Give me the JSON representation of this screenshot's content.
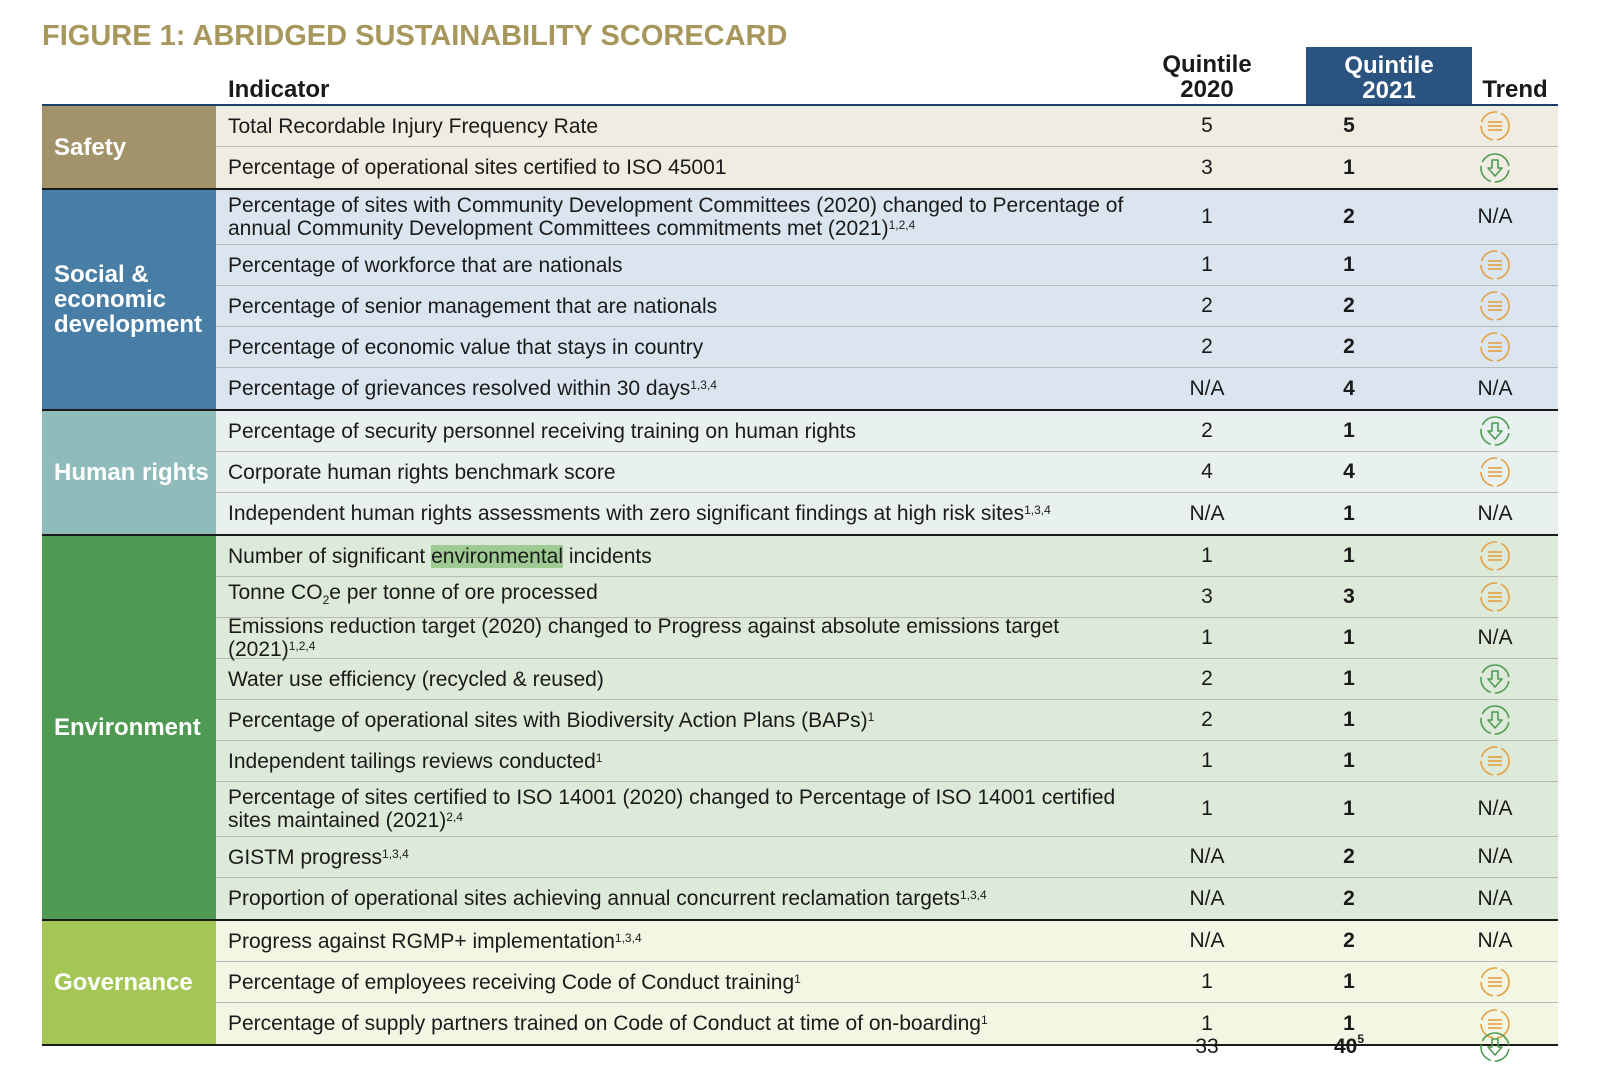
{
  "title": "FIGURE 1:  ABRIDGED SUSTAINABILITY SCORECARD",
  "headers": {
    "indicator": "Indicator",
    "q2020_line1": "Quintile",
    "q2020_line2": "2020",
    "q2021_line1": "Quintile",
    "q2021_line2": "2021",
    "trend": "Trend"
  },
  "colors": {
    "safety": "#a2936a",
    "social": "#487ea6",
    "human_rights": "#8fbbbb",
    "environment": "#4f9a53",
    "governance": "#a3c655",
    "header_2021": "#2a5380",
    "trend_equal": "#e3a043",
    "trend_down": "#4f9a53"
  },
  "sections": [
    {
      "key": "safety",
      "label": "Safety",
      "rows": [
        {
          "indicator": "Total Recordable Injury Frequency Rate",
          "sup": "",
          "q2020": "5",
          "q2021": "5",
          "trend": "equal-icon"
        },
        {
          "indicator": "Percentage of operational sites certified to ISO 45001",
          "sup": "",
          "q2020": "3",
          "q2021": "1",
          "trend": "down-arrow-icon"
        }
      ]
    },
    {
      "key": "social",
      "label": "Social & economic development",
      "rows": [
        {
          "indicator": "Percentage of sites with Community Development Committees (2020) changed to Percentage of annual Community Development Committees commitments met (2021)",
          "sup": "1,2,4",
          "q2020": "1",
          "q2021": "2",
          "trend": "N/A",
          "tall": true
        },
        {
          "indicator": "Percentage of workforce that are nationals",
          "sup": "",
          "q2020": "1",
          "q2021": "1",
          "trend": "equal-icon"
        },
        {
          "indicator": "Percentage of senior management that are nationals",
          "sup": "",
          "q2020": "2",
          "q2021": "2",
          "trend": "equal-icon"
        },
        {
          "indicator": "Percentage of economic value that stays in country",
          "sup": "",
          "q2020": "2",
          "q2021": "2",
          "trend": "equal-icon"
        },
        {
          "indicator": "Percentage of grievances resolved within 30 days",
          "sup": "1,3,4",
          "q2020": "N/A",
          "q2021": "4",
          "trend": "N/A"
        }
      ]
    },
    {
      "key": "human",
      "label": "Human rights",
      "rows": [
        {
          "indicator": "Percentage of security personnel receiving training on human rights",
          "sup": "",
          "q2020": "2",
          "q2021": "1",
          "trend": "down-arrow-icon"
        },
        {
          "indicator": "Corporate human rights benchmark score",
          "sup": "",
          "q2020": "4",
          "q2021": "4",
          "trend": "equal-icon"
        },
        {
          "indicator": "Independent human rights assessments with zero significant findings at high risk sites",
          "sup": "1,3,4",
          "q2020": "N/A",
          "q2021": "1",
          "trend": "N/A"
        }
      ]
    },
    {
      "key": "env",
      "label": "Environment",
      "rows": [
        {
          "indicator_pre": "Number of significant ",
          "indicator_hl": "environmental",
          "indicator_post": " incidents",
          "sup": "",
          "q2020": "1",
          "q2021": "1",
          "trend": "equal-icon"
        },
        {
          "indicator_pre": "Tonne CO",
          "indicator_sub": "2",
          "indicator_post": "e per tonne of ore processed",
          "sup": "",
          "q2020": "3",
          "q2021": "3",
          "trend": "equal-icon"
        },
        {
          "indicator": "Emissions reduction target (2020) changed to Progress against absolute emissions target (2021)",
          "sup": "1,2,4",
          "q2020": "1",
          "q2021": "1",
          "trend": "N/A"
        },
        {
          "indicator": "Water use efficiency (recycled & reused)",
          "sup": "",
          "q2020": "2",
          "q2021": "1",
          "trend": "down-arrow-icon"
        },
        {
          "indicator": "Percentage of operational sites with Biodiversity Action Plans (BAPs)",
          "sup": "1",
          "q2020": "2",
          "q2021": "1",
          "trend": "down-arrow-icon"
        },
        {
          "indicator": "Independent tailings reviews conducted",
          "sup": "1",
          "q2020": "1",
          "q2021": "1",
          "trend": "equal-icon"
        },
        {
          "indicator": "Percentage of sites certified to ISO 14001 (2020) changed to Percentage of ISO 14001 certified sites maintained (2021)",
          "sup": "2,4",
          "q2020": "1",
          "q2021": "1",
          "trend": "N/A",
          "tall": true
        },
        {
          "indicator": "GISTM progress",
          "sup": "1,3,4",
          "q2020": "N/A",
          "q2021": "2",
          "trend": "N/A"
        },
        {
          "indicator": "Proportion of operational sites achieving annual concurrent reclamation targets",
          "sup": "1,3,4",
          "q2020": "N/A",
          "q2021": "2",
          "trend": "N/A"
        }
      ]
    },
    {
      "key": "gov",
      "label": "Governance",
      "rows": [
        {
          "indicator": "Progress against RGMP+ implementation",
          "sup": "1,3,4",
          "q2020": "N/A",
          "q2021": "2",
          "trend": "N/A"
        },
        {
          "indicator": "Percentage of employees receiving Code of Conduct training",
          "sup": "1",
          "q2020": "1",
          "q2021": "1",
          "trend": "equal-icon"
        },
        {
          "indicator": "Percentage of supply partners trained on Code of Conduct at time of on-boarding",
          "sup": "1",
          "q2020": "1",
          "q2021": "1",
          "trend": "equal-icon"
        }
      ]
    }
  ],
  "totals": {
    "q2020": "33",
    "q2021": "40",
    "q2021_sup": "5",
    "trend": "down-arrow-icon"
  }
}
